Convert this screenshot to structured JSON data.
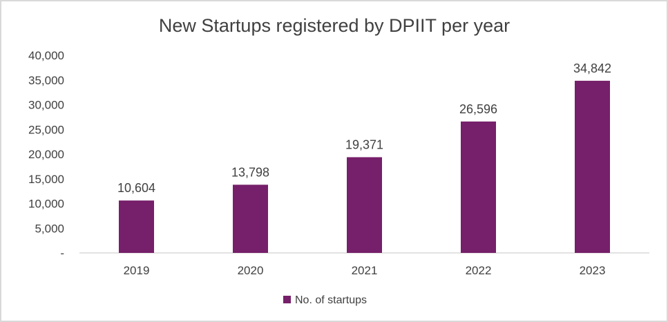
{
  "chart_data": {
    "type": "bar",
    "title": "New Startups registered by DPIIT per year",
    "xlabel": "",
    "ylabel": "",
    "categories": [
      "2019",
      "2020",
      "2021",
      "2022",
      "2023"
    ],
    "series": [
      {
        "name": "No. of startups",
        "values": [
          10604,
          13798,
          19371,
          26596,
          34842
        ],
        "data_labels": [
          "10,604",
          "13,798",
          "19,371",
          "26,596",
          "34,842"
        ],
        "color": "#761f6a"
      }
    ],
    "ylim": [
      0,
      40000
    ],
    "y_ticks": [
      0,
      5000,
      10000,
      15000,
      20000,
      25000,
      30000,
      35000,
      40000
    ],
    "y_tick_labels": [
      "-",
      "5,000",
      "10,000",
      "15,000",
      "20,000",
      "25,000",
      "30,000",
      "35,000",
      "40,000"
    ],
    "grid": false,
    "legend_position": "bottom"
  }
}
